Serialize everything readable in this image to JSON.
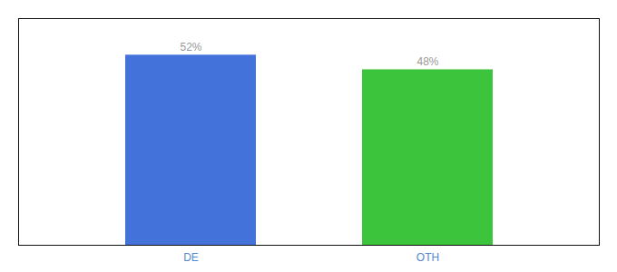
{
  "chart_data": {
    "type": "bar",
    "categories": [
      "DE",
      "OTH"
    ],
    "values": [
      52,
      48
    ],
    "colors": [
      "#4472db",
      "#3dc43d"
    ],
    "value_labels": [
      "52%",
      "48%"
    ],
    "data_labels": true,
    "ylim": [
      0,
      62
    ],
    "grid": false,
    "tick_labels": "x"
  }
}
